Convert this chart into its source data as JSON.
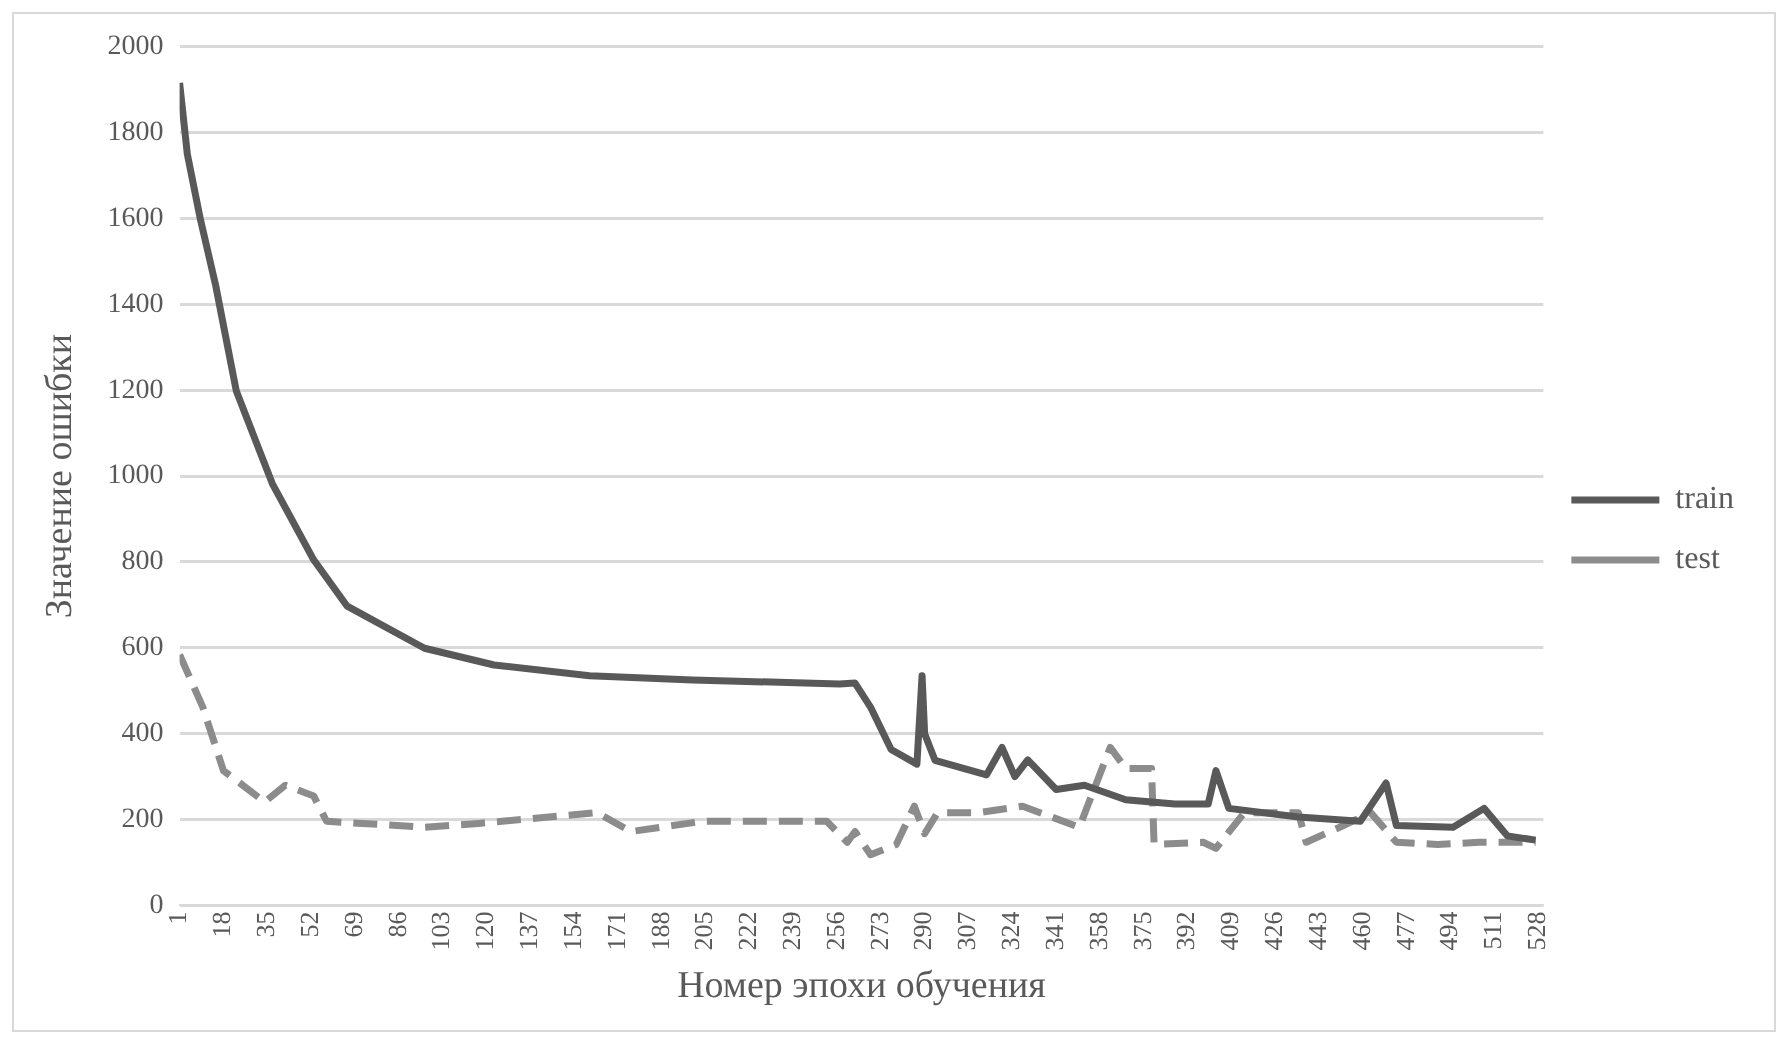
{
  "chart_data": {
    "type": "line",
    "xlabel": "Номер эпохи обучения",
    "ylabel": "Значение ошибки",
    "xlim": [
      1,
      530
    ],
    "xticks": [
      1,
      18,
      35,
      52,
      69,
      86,
      103,
      120,
      137,
      154,
      171,
      188,
      205,
      222,
      239,
      256,
      273,
      290,
      307,
      324,
      341,
      358,
      375,
      392,
      409,
      426,
      443,
      460,
      477,
      494,
      511,
      528
    ],
    "ylim": [
      0,
      2000
    ],
    "yticks": [
      0,
      200,
      400,
      600,
      800,
      1000,
      1200,
      1400,
      1600,
      1800,
      2000
    ],
    "grid": "y",
    "legend": "right",
    "marker": "none",
    "series": [
      {
        "name": "train",
        "color": "#595959",
        "line_style": "solid",
        "x": [
          1,
          4,
          9,
          15,
          23,
          37,
          53,
          66,
          96,
          123,
          160,
          200,
          257,
          263,
          269,
          277,
          287,
          289,
          290,
          294,
          314,
          320,
          325,
          330,
          341,
          352,
          368,
          387,
          400,
          403,
          408,
          435,
          459,
          469,
          473,
          495,
          507,
          516,
          527
        ],
        "values": [
          1916,
          1750,
          1600,
          1444,
          1198,
          982,
          805,
          697,
          599,
          560,
          535,
          525,
          516,
          518,
          462,
          363,
          329,
          535,
          400,
          338,
          304,
          368,
          300,
          339,
          270,
          280,
          246,
          236,
          236,
          314,
          226,
          206,
          196,
          285,
          186,
          182,
          226,
          162,
          152
        ]
      },
      {
        "name": "test",
        "color": "#8c8c8c",
        "line_style": "dashed",
        "x": [
          1,
          10,
          18,
          34,
          42,
          53,
          58,
          96,
          117,
          163,
          176,
          204,
          244,
          252,
          260,
          263,
          269,
          279,
          286,
          290,
          295,
          311,
          328,
          350,
          362,
          368,
          378,
          379,
          398,
          403,
          414,
          435,
          438,
          451,
          463,
          473,
          489,
          505,
          527
        ],
        "values": [
          584,
          462,
          314,
          241,
          280,
          255,
          196,
          182,
          191,
          216,
          172,
          196,
          196,
          196,
          147,
          172,
          118,
          142,
          231,
          167,
          216,
          216,
          231,
          182,
          368,
          319,
          319,
          142,
          147,
          133,
          216,
          216,
          147,
          182,
          216,
          147,
          142,
          147,
          147
        ]
      }
    ]
  }
}
